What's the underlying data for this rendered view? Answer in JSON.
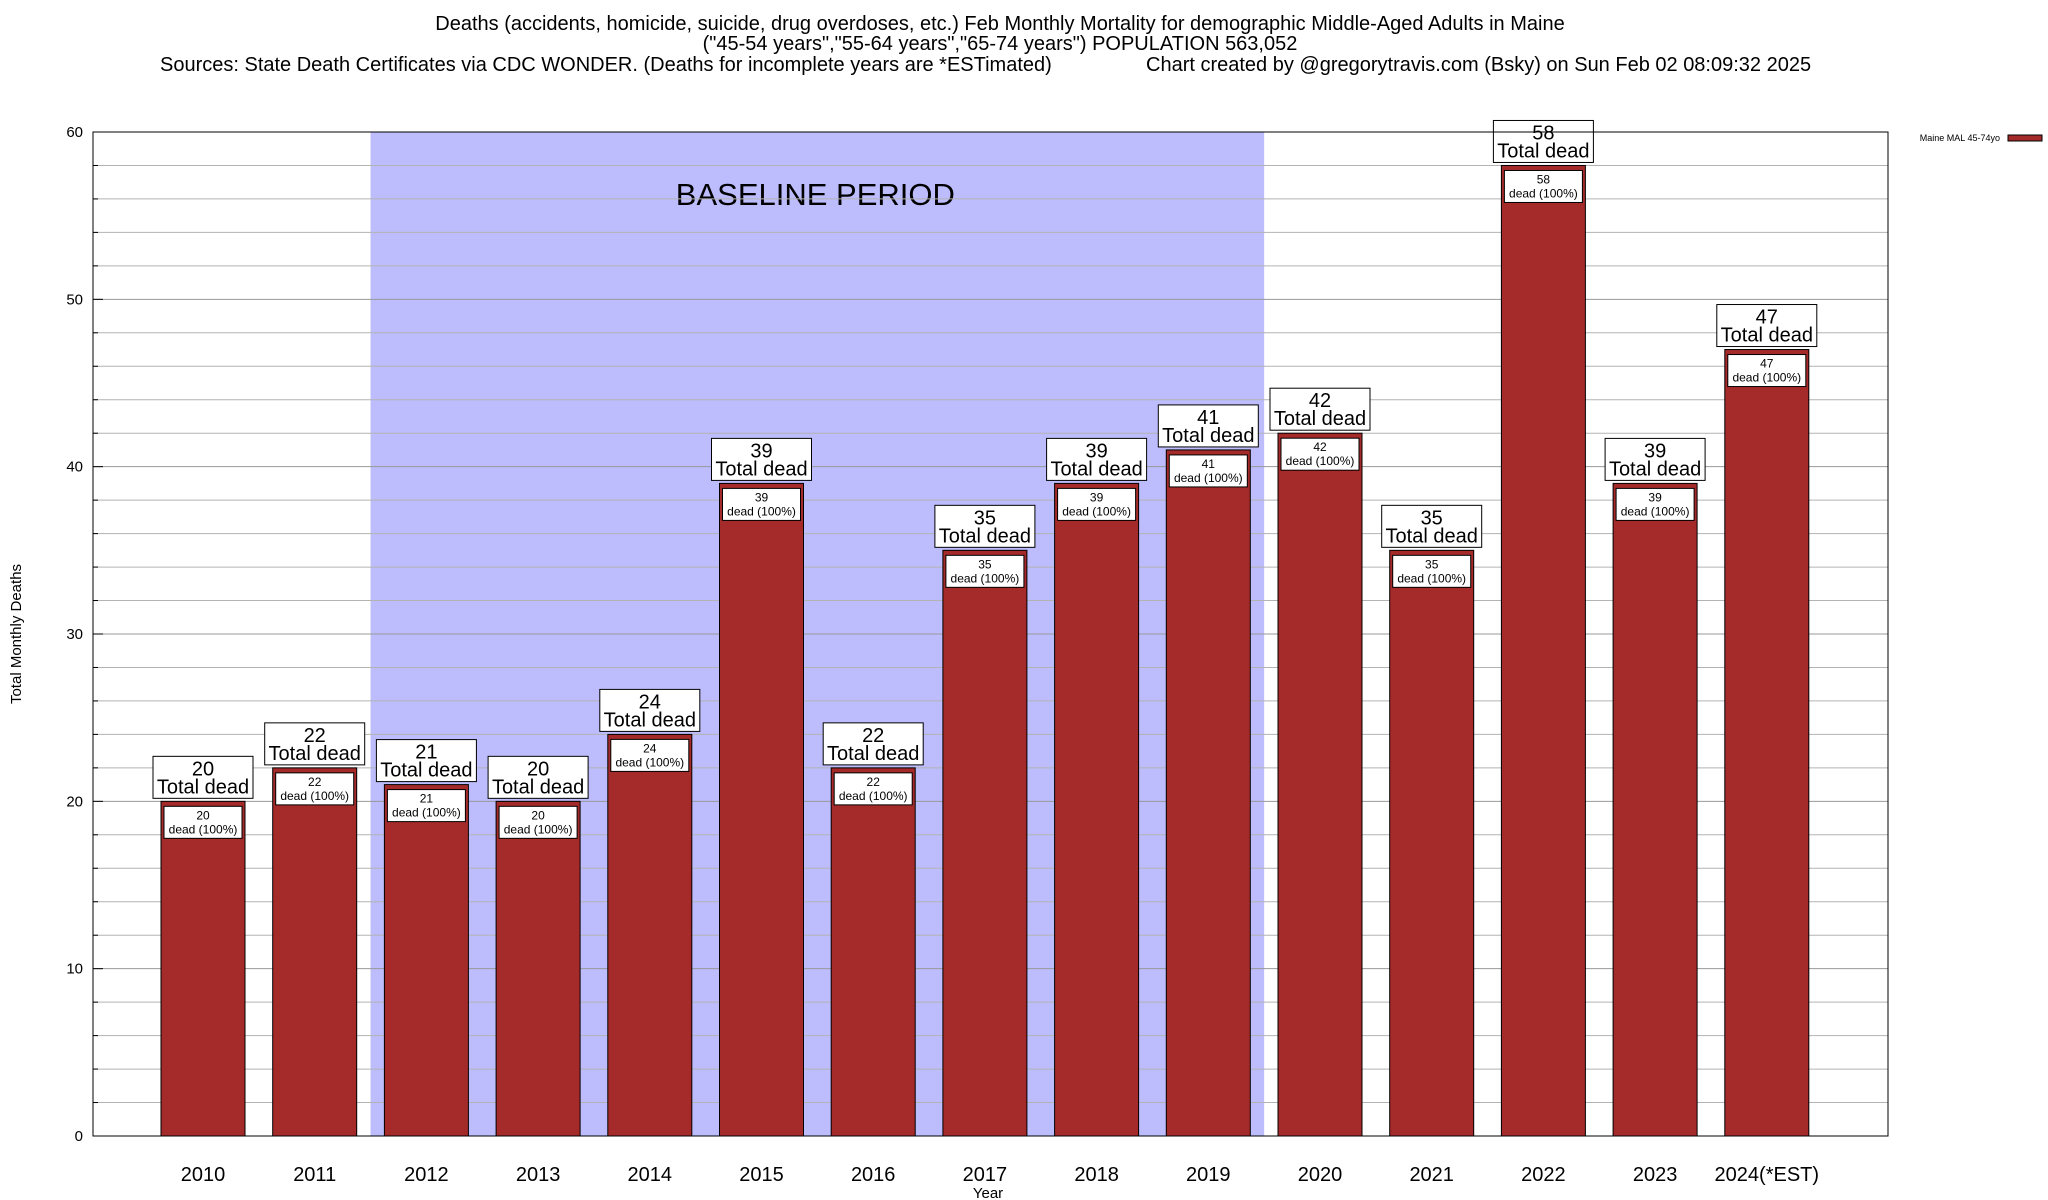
{
  "title": {
    "line1": "Deaths (accidents, homicide, suicide, drug overdoses, etc.) Feb Monthly Mortality for demographic Middle-Aged Adults in Maine",
    "line2": "(\"45-54 years\",\"55-64 years\",\"65-74 years\") POPULATION 563,052",
    "sources": "Sources: State Death Certificates via CDC WONDER. (Deaths for incomplete years are *ESTimated)",
    "credit": "Chart created by @gregorytravis.com (Bsky) on Sun Feb 02 08:09:32 2025"
  },
  "chart_data": {
    "type": "bar",
    "title": "Deaths (accidents, homicide, suicide, drug overdoses, etc.) Feb Monthly Mortality for demographic Middle-Aged Adults in Maine",
    "xlabel": "Year",
    "ylabel": "Total Monthly Deaths",
    "ylim": [
      0,
      60
    ],
    "yticks": [
      0,
      10,
      20,
      30,
      40,
      50,
      60
    ],
    "grid": true,
    "legend_position": "top-right",
    "categories": [
      "2010",
      "2011",
      "2012",
      "2013",
      "2014",
      "2015",
      "2016",
      "2017",
      "2018",
      "2019",
      "2020",
      "2021",
      "2022",
      "2023",
      "2024(*EST)"
    ],
    "series": [
      {
        "name": "Maine MAL 45-74yo",
        "values": [
          20,
          22,
          21,
          20,
          24,
          39,
          22,
          35,
          39,
          41,
          42,
          35,
          58,
          39,
          47
        ],
        "color": "#a52a2a"
      }
    ],
    "total_label_suffix": "Total dead",
    "segment_label_suffix": "dead (100%)",
    "shaded_band": {
      "label": "BASELINE PERIOD",
      "from_category": "2012",
      "to_category": "2019",
      "color": "#bdbdfd"
    }
  }
}
